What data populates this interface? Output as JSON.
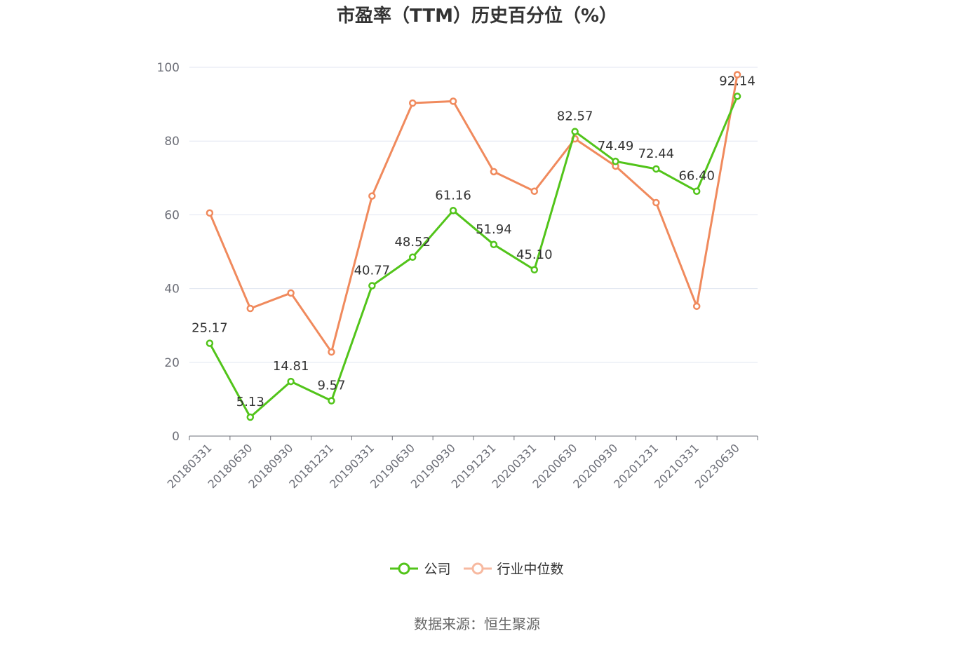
{
  "chart_data": {
    "type": "line",
    "title": "市盈率（TTM）历史百分位（%）",
    "categories": [
      "20180331",
      "20180630",
      "20180930",
      "20181231",
      "20190331",
      "20190630",
      "20190930",
      "20191231",
      "20200331",
      "20200630",
      "20200930",
      "20201231",
      "20210331",
      "20230630"
    ],
    "ylim": [
      0,
      100
    ],
    "yticks": [
      0,
      20,
      40,
      60,
      80,
      100
    ],
    "grid": true,
    "legend_position": "bottom",
    "series": [
      {
        "name": "公司",
        "color": "#52c41a",
        "values": [
          25.17,
          5.13,
          14.81,
          9.57,
          40.77,
          48.52,
          61.16,
          51.94,
          45.1,
          82.57,
          74.49,
          72.44,
          66.4,
          92.14
        ],
        "labels": [
          "25.17",
          "5.13",
          "14.81",
          "9.57",
          "40.77",
          "48.52",
          "61.16",
          "51.94",
          "45.10",
          "82.57",
          "74.49",
          "72.44",
          "66.40",
          "92.14"
        ]
      },
      {
        "name": "行业中位数",
        "color": "#f08a5d",
        "values": [
          60.5,
          34.6,
          38.8,
          22.8,
          65.1,
          90.3,
          90.8,
          71.7,
          66.4,
          80.6,
          73.2,
          63.3,
          35.2,
          98.0
        ]
      }
    ]
  },
  "legend": {
    "company": "公司",
    "industry": "行业中位数"
  },
  "source": "数据来源：恒生聚源"
}
